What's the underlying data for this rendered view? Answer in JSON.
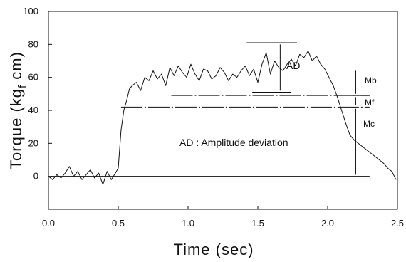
{
  "chart_data": {
    "type": "line",
    "title": "",
    "xlabel": "Time (sec)",
    "ylabel": "Torque (kg_f cm)",
    "ylabel_parts": [
      "Torque (kg",
      "f",
      " cm)"
    ],
    "xlim": [
      0,
      2.5
    ],
    "ylim": [
      -20,
      100
    ],
    "x_ticks": [
      0.0,
      0.5,
      1.0,
      1.5,
      2.0,
      2.5
    ],
    "x_tick_labels": [
      "0.0",
      "0.5",
      "1.0",
      "1.5",
      "2.0",
      "2.5"
    ],
    "y_ticks": [
      0,
      20,
      40,
      60,
      80,
      100
    ],
    "y_tick_labels": [
      "0",
      "20",
      "40",
      "60",
      "80",
      "100"
    ],
    "grid": false,
    "series": [
      {
        "values_x": [
          0.0,
          0.03,
          0.06,
          0.09,
          0.12,
          0.15,
          0.18,
          0.21,
          0.24,
          0.27,
          0.3,
          0.33,
          0.36,
          0.39,
          0.42,
          0.45,
          0.48,
          0.5,
          0.52,
          0.54,
          0.56,
          0.58,
          0.6,
          0.63,
          0.66,
          0.69,
          0.72,
          0.75,
          0.78,
          0.81,
          0.84,
          0.87,
          0.9,
          0.93,
          0.96,
          0.99,
          1.02,
          1.05,
          1.08,
          1.11,
          1.14,
          1.17,
          1.2,
          1.23,
          1.26,
          1.29,
          1.32,
          1.35,
          1.38,
          1.41,
          1.44,
          1.47,
          1.5,
          1.53,
          1.56,
          1.59,
          1.62,
          1.65,
          1.68,
          1.71,
          1.74,
          1.77,
          1.8,
          1.83,
          1.86,
          1.89,
          1.92,
          1.95,
          1.98,
          2.01,
          2.04,
          2.07,
          2.1,
          2.13,
          2.16,
          2.19,
          2.22,
          2.25,
          2.28,
          2.31,
          2.34,
          2.37,
          2.4,
          2.43,
          2.46,
          2.49
        ],
        "values": [
          0,
          -2,
          1,
          -1,
          2,
          6,
          0,
          3,
          -2,
          1,
          4,
          -1,
          2,
          -5,
          3,
          -2,
          2,
          5,
          28,
          40,
          46,
          53,
          55,
          57,
          52,
          60,
          58,
          64,
          59,
          62,
          55,
          66,
          61,
          67,
          63,
          60,
          68,
          62,
          58,
          65,
          64,
          59,
          61,
          66,
          63,
          58,
          62,
          60,
          64,
          67,
          61,
          65,
          57,
          68,
          75,
          62,
          70,
          66,
          64,
          68,
          71,
          67,
          74,
          72,
          76,
          70,
          73,
          68,
          65,
          60,
          55,
          48,
          40,
          32,
          25,
          22,
          20,
          18,
          16,
          14,
          12,
          10,
          8,
          5,
          3,
          -2
        ]
      }
    ],
    "annotations": {
      "ad_label": "AD",
      "ad_caption": "AD : Amplitude deviation",
      "mb": "Mb",
      "mf": "Mf",
      "mc": "Mc"
    }
  }
}
